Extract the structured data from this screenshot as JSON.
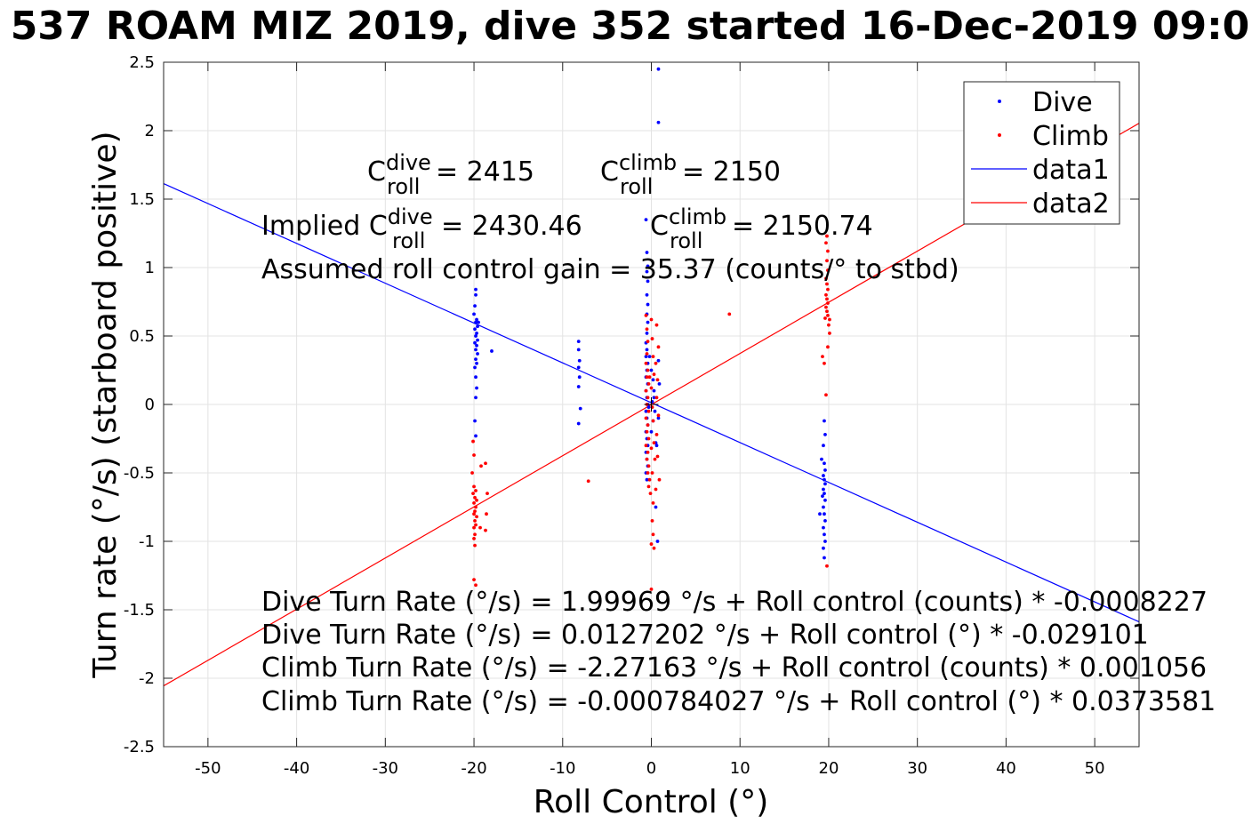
{
  "chart_data": {
    "type": "scatter",
    "title": "537 ROAM MIZ 2019, dive 352 started 16-Dec-2019 09:0",
    "xlabel": "Roll Control (°)",
    "ylabel": "Turn rate (°/s) (starboard positive)",
    "xlim": [
      -55,
      55
    ],
    "ylim": [
      -2.5,
      2.5
    ],
    "xticks": [
      -50,
      -40,
      -30,
      -20,
      -10,
      0,
      10,
      20,
      30,
      40,
      50
    ],
    "yticks": [
      -2.5,
      -2,
      -1.5,
      -1,
      -0.5,
      0,
      0.5,
      1,
      1.5,
      2,
      2.5
    ],
    "grid": true,
    "legend_position": "top-right",
    "legend": [
      {
        "label": "Dive",
        "kind": "marker",
        "color": "#0000ff"
      },
      {
        "label": "Climb",
        "kind": "marker",
        "color": "#ff0000"
      },
      {
        "label": "data1",
        "kind": "line",
        "color": "#0000ff"
      },
      {
        "label": "data2",
        "kind": "line",
        "color": "#ff0000"
      }
    ],
    "series": [
      {
        "name": "Dive",
        "kind": "scatter",
        "color": "#0000ff",
        "points": [
          [
            -19.8,
            0.84
          ],
          [
            -19.8,
            0.8
          ],
          [
            -19.9,
            0.72
          ],
          [
            -19.7,
            0.62
          ],
          [
            -19.8,
            0.6
          ],
          [
            -19.6,
            0.57
          ],
          [
            -19.9,
            0.55
          ],
          [
            -19.7,
            0.52
          ],
          [
            -19.8,
            0.5
          ],
          [
            -19.6,
            0.47
          ],
          [
            -19.9,
            0.45
          ],
          [
            -19.7,
            0.43
          ],
          [
            -19.8,
            0.4
          ],
          [
            -19.6,
            0.37
          ],
          [
            -19.8,
            0.33
          ],
          [
            -19.7,
            0.3
          ],
          [
            -19.9,
            0.27
          ],
          [
            -19.8,
            0.2
          ],
          [
            -19.7,
            0.12
          ],
          [
            -19.8,
            0.05
          ],
          [
            -19.9,
            -0.12
          ],
          [
            -19.8,
            -0.23
          ],
          [
            -18.0,
            0.39
          ],
          [
            -19.5,
            0.6
          ],
          [
            -20.0,
            0.66
          ],
          [
            -8.2,
            0.46
          ],
          [
            -8.2,
            0.4
          ],
          [
            -8.1,
            0.32
          ],
          [
            -8.2,
            0.27
          ],
          [
            -8.1,
            0.2
          ],
          [
            -8.2,
            0.13
          ],
          [
            -8.0,
            -0.03
          ],
          [
            -8.2,
            -0.14
          ],
          [
            0.8,
            2.45
          ],
          [
            0.8,
            2.06
          ],
          [
            -0.6,
            1.35
          ],
          [
            -0.5,
            1.11
          ],
          [
            -0.4,
            1.01
          ],
          [
            -0.5,
            0.97
          ],
          [
            -0.4,
            0.9
          ],
          [
            -0.5,
            0.8
          ],
          [
            -0.4,
            0.73
          ],
          [
            -0.5,
            0.66
          ],
          [
            -0.4,
            0.6
          ],
          [
            -0.5,
            0.52
          ],
          [
            -0.6,
            0.45
          ],
          [
            -0.5,
            0.4
          ],
          [
            -0.6,
            0.35
          ],
          [
            -0.4,
            0.3
          ],
          [
            -0.5,
            0.25
          ],
          [
            -0.6,
            0.2
          ],
          [
            -0.4,
            0.15
          ],
          [
            -0.6,
            0.1
          ],
          [
            -0.5,
            0.05
          ],
          [
            -0.4,
            0.0
          ],
          [
            -0.6,
            -0.05
          ],
          [
            -0.5,
            -0.1
          ],
          [
            -0.4,
            -0.15
          ],
          [
            -0.6,
            -0.2
          ],
          [
            -0.5,
            -0.25
          ],
          [
            -0.4,
            -0.3
          ],
          [
            -0.6,
            -0.35
          ],
          [
            -0.5,
            -0.4
          ],
          [
            -0.4,
            -0.45
          ],
          [
            -0.6,
            -0.5
          ],
          [
            -0.5,
            -0.55
          ],
          [
            -0.2,
            0.35
          ],
          [
            0.0,
            0.25
          ],
          [
            0.2,
            0.18
          ],
          [
            0.3,
            0.1
          ],
          [
            0.1,
            0.02
          ],
          [
            0.4,
            -0.05
          ],
          [
            0.2,
            -0.12
          ],
          [
            0.0,
            -0.2
          ],
          [
            0.5,
            -0.28
          ],
          [
            0.8,
            0.32
          ],
          [
            0.9,
            0.15
          ],
          [
            0.8,
            -0.1
          ],
          [
            0.6,
            -0.3
          ],
          [
            0.5,
            -0.75
          ],
          [
            0.7,
            -1.0
          ],
          [
            -0.3,
            -0.02
          ],
          [
            0.3,
            0.05
          ],
          [
            19.5,
            -0.12
          ],
          [
            19.6,
            -0.22
          ],
          [
            19.4,
            -0.3
          ],
          [
            19.5,
            -0.43
          ],
          [
            19.6,
            -0.48
          ],
          [
            19.4,
            -0.52
          ],
          [
            19.5,
            -0.55
          ],
          [
            19.6,
            -0.58
          ],
          [
            19.4,
            -0.62
          ],
          [
            19.5,
            -0.65
          ],
          [
            19.6,
            -0.7
          ],
          [
            19.4,
            -0.75
          ],
          [
            19.5,
            -0.8
          ],
          [
            19.6,
            -0.85
          ],
          [
            19.4,
            -0.9
          ],
          [
            19.5,
            -0.95
          ],
          [
            19.6,
            -1.0
          ],
          [
            19.4,
            -1.05
          ],
          [
            19.5,
            -1.12
          ],
          [
            19.3,
            -0.67
          ],
          [
            19.2,
            -0.4
          ],
          [
            19.0,
            -0.8
          ]
        ]
      },
      {
        "name": "Climb",
        "kind": "scatter",
        "color": "#ff0000",
        "points": [
          [
            -20.1,
            -0.27
          ],
          [
            -20.0,
            -0.37
          ],
          [
            -20.2,
            -0.5
          ],
          [
            -20.0,
            -0.6
          ],
          [
            -19.8,
            -0.63
          ],
          [
            -20.1,
            -0.65
          ],
          [
            -19.9,
            -0.68
          ],
          [
            -19.7,
            -0.7
          ],
          [
            -20.0,
            -0.72
          ],
          [
            -19.8,
            -0.75
          ],
          [
            -19.9,
            -0.78
          ],
          [
            -20.0,
            -0.8
          ],
          [
            -19.7,
            -0.82
          ],
          [
            -19.9,
            -0.85
          ],
          [
            -19.8,
            -0.88
          ],
          [
            -20.0,
            -0.9
          ],
          [
            -19.9,
            -0.95
          ],
          [
            -20.0,
            -0.98
          ],
          [
            -19.9,
            -1.03
          ],
          [
            -20.0,
            -1.28
          ],
          [
            -19.8,
            -1.32
          ],
          [
            -18.7,
            -0.43
          ],
          [
            -18.5,
            -0.65
          ],
          [
            -18.6,
            -0.8
          ],
          [
            -18.7,
            -0.92
          ],
          [
            -19.2,
            -0.45
          ],
          [
            -19.3,
            -0.9
          ],
          [
            -7.1,
            -0.56
          ],
          [
            8.8,
            0.66
          ],
          [
            -0.6,
            0.65
          ],
          [
            -0.5,
            0.55
          ],
          [
            -0.4,
            0.46
          ],
          [
            -0.5,
            0.37
          ],
          [
            -0.6,
            0.3
          ],
          [
            -0.4,
            0.25
          ],
          [
            -0.5,
            0.2
          ],
          [
            -0.3,
            0.15
          ],
          [
            -0.6,
            0.1
          ],
          [
            -0.4,
            0.05
          ],
          [
            -0.5,
            0.0
          ],
          [
            -0.3,
            -0.05
          ],
          [
            -0.6,
            -0.1
          ],
          [
            -0.4,
            -0.15
          ],
          [
            -0.5,
            -0.2
          ],
          [
            -0.3,
            -0.25
          ],
          [
            -0.6,
            -0.3
          ],
          [
            -0.4,
            -0.35
          ],
          [
            -0.5,
            -0.4
          ],
          [
            -0.3,
            -0.45
          ],
          [
            -0.4,
            -0.5
          ],
          [
            -0.2,
            -0.55
          ],
          [
            -0.3,
            -0.6
          ],
          [
            -0.1,
            -0.65
          ],
          [
            0.0,
            0.62
          ],
          [
            0.1,
            0.48
          ],
          [
            0.2,
            0.35
          ],
          [
            0.3,
            0.22
          ],
          [
            0.0,
            0.12
          ],
          [
            0.1,
            -0.02
          ],
          [
            0.2,
            -0.12
          ],
          [
            0.3,
            -0.28
          ],
          [
            0.4,
            -0.4
          ],
          [
            0.1,
            -0.5
          ],
          [
            0.2,
            -0.72
          ],
          [
            0.1,
            -0.85
          ],
          [
            0.2,
            -0.95
          ],
          [
            0.0,
            -1.02
          ],
          [
            0.3,
            -1.05
          ],
          [
            0.0,
            -1.35
          ],
          [
            0.6,
            0.58
          ],
          [
            0.8,
            0.42
          ],
          [
            0.5,
            0.3
          ],
          [
            0.7,
            0.18
          ],
          [
            0.6,
            0.05
          ],
          [
            0.8,
            -0.08
          ],
          [
            0.6,
            -0.22
          ],
          [
            0.7,
            -0.38
          ],
          [
            0.9,
            -0.55
          ],
          [
            0.5,
            -0.62
          ],
          [
            -0.2,
            0.2
          ],
          [
            0.0,
            -0.32
          ],
          [
            19.8,
            1.23
          ],
          [
            19.7,
            1.18
          ],
          [
            19.9,
            1.12
          ],
          [
            19.8,
            1.05
          ],
          [
            19.9,
            0.98
          ],
          [
            19.7,
            0.92
          ],
          [
            19.8,
            0.88
          ],
          [
            19.9,
            0.84
          ],
          [
            19.7,
            0.8
          ],
          [
            19.8,
            0.77
          ],
          [
            19.9,
            0.74
          ],
          [
            19.7,
            0.71
          ],
          [
            19.8,
            0.68
          ],
          [
            19.9,
            0.65
          ],
          [
            20.1,
            0.62
          ],
          [
            20.0,
            0.58
          ],
          [
            20.1,
            0.52
          ],
          [
            19.6,
            0.63
          ],
          [
            19.3,
            0.35
          ],
          [
            19.5,
            0.3
          ],
          [
            19.9,
            0.42
          ],
          [
            19.7,
            0.07
          ],
          [
            19.8,
            -1.18
          ]
        ]
      },
      {
        "name": "data1",
        "kind": "line",
        "color": "#0000ff",
        "points": [
          [
            -55,
            1.613
          ],
          [
            55,
            -1.588
          ]
        ]
      },
      {
        "name": "data2",
        "kind": "line",
        "color": "#ff0000",
        "points": [
          [
            -55,
            -2.056
          ],
          [
            55,
            2.054
          ]
        ]
      }
    ],
    "annotations": {
      "c_dive_prefix": "C",
      "c_dive_sup": "dive",
      "c_dive_sub": "roll",
      "c_dive_value": " = 2415",
      "c_climb_prefix": "C",
      "c_climb_sup": "climb",
      "c_climb_sub": "roll",
      "c_climb_value": " = 2150",
      "implied_label": "Implied C",
      "implied_dive_sup": "dive",
      "implied_dive_sub": "roll",
      "implied_dive_value": " = 2430.46",
      "implied_climb_prefix": "C",
      "implied_climb_sup": "climb",
      "implied_climb_sub": "roll",
      "implied_climb_value": " = 2150.74",
      "gain_line": "Assumed roll control gain = 35.37 (counts/° to stbd)",
      "eq1": "Dive Turn Rate (°/s) = 1.99969 °/s + Roll control (counts) * -0.0008227",
      "eq2": "Dive Turn Rate (°/s) = 0.0127202 °/s + Roll control (°) * -0.029101",
      "eq3": "Climb Turn Rate (°/s) = -2.27163 °/s + Roll control (counts) * 0.001056",
      "eq4": "Climb Turn Rate (°/s) = -0.000784027 °/s + Roll control (°) * 0.0373581"
    }
  }
}
